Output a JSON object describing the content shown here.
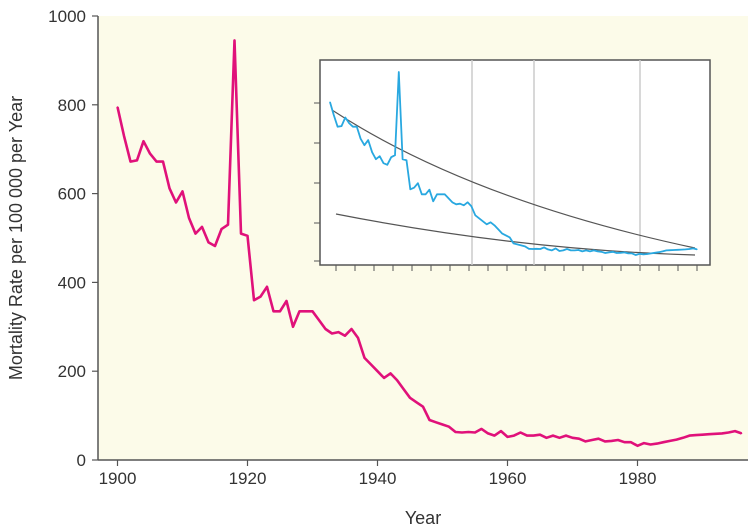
{
  "chart_data": {
    "type": "line",
    "title": "",
    "xlabel": "Year",
    "ylabel": "Mortality Rate per 100 000 per Year",
    "xlim": [
      1897,
      1997
    ],
    "ylim": [
      0,
      1000
    ],
    "x_ticks": [
      1900,
      1920,
      1940,
      1960,
      1980
    ],
    "y_ticks": [
      0,
      200,
      400,
      600,
      800,
      1000
    ],
    "grid": false,
    "legend": "none",
    "colors": {
      "series": "#e0117a",
      "background": "#fcfbe9",
      "axis": "#555555"
    },
    "series": [
      {
        "x": [
          1900,
          1901,
          1902,
          1903,
          1904,
          1905,
          1906,
          1907,
          1908,
          1909,
          1910,
          1911,
          1912,
          1913,
          1914,
          1915,
          1916,
          1917,
          1918,
          1919,
          1920,
          1921,
          1922,
          1923,
          1924,
          1925,
          1926,
          1927,
          1928,
          1929,
          1930,
          1931,
          1932,
          1933,
          1934,
          1935,
          1936,
          1937,
          1938,
          1939,
          1940,
          1941,
          1942,
          1943,
          1944,
          1945,
          1946,
          1947,
          1948,
          1949,
          1950,
          1951,
          1952,
          1953,
          1954,
          1955,
          1956,
          1957,
          1958,
          1959,
          1960,
          1961,
          1962,
          1963,
          1964,
          1965,
          1966,
          1967,
          1968,
          1969,
          1970,
          1971,
          1972,
          1973,
          1974,
          1975,
          1976,
          1977,
          1978,
          1979,
          1980,
          1981,
          1982,
          1983,
          1984,
          1985,
          1986,
          1987,
          1988,
          1989,
          1990,
          1991,
          1992,
          1993,
          1994,
          1995,
          1996
        ],
        "y": [
          795,
          730,
          672,
          675,
          718,
          690,
          672,
          672,
          612,
          580,
          605,
          545,
          510,
          525,
          490,
          482,
          520,
          530,
          945,
          510,
          505,
          360,
          368,
          390,
          335,
          335,
          358,
          300,
          335,
          335,
          335,
          315,
          295,
          285,
          288,
          280,
          295,
          275,
          230,
          215,
          200,
          185,
          195,
          180,
          160,
          140,
          130,
          120,
          90,
          85,
          80,
          75,
          63,
          62,
          63,
          62,
          70,
          60,
          55,
          65,
          52,
          55,
          62,
          55,
          55,
          57,
          50,
          55,
          50,
          55,
          50,
          48,
          42,
          45,
          48,
          42,
          43,
          45,
          40,
          40,
          32,
          38,
          35,
          37,
          40,
          43,
          46,
          50,
          55,
          56,
          57,
          58,
          59,
          60,
          62,
          65,
          60
        ]
      }
    ]
  },
  "inset": {
    "type": "line",
    "colors": {
      "series": "#29a8e0",
      "fit": "#555555",
      "frame": "#555555",
      "grid": "#cccccc"
    },
    "series": [
      {
        "x": [
          0,
          1,
          2,
          3,
          4,
          5,
          6,
          7,
          8,
          9,
          10,
          11,
          12,
          13,
          14,
          15,
          16,
          17,
          18,
          19,
          20,
          21,
          22,
          23,
          24,
          25,
          26,
          27,
          28,
          29,
          30,
          31,
          32,
          33,
          34,
          35,
          36,
          37,
          38,
          39,
          40,
          41,
          42,
          43,
          44,
          45,
          46,
          47,
          48,
          49,
          50,
          51,
          52,
          53,
          54,
          55,
          56,
          57,
          58,
          59,
          60,
          61,
          62,
          63,
          64,
          65,
          66,
          67,
          68,
          69,
          70,
          71,
          72,
          73,
          74,
          75,
          76,
          77,
          78,
          79,
          80,
          81,
          82,
          83,
          84,
          85,
          86,
          87,
          88,
          89,
          90,
          91,
          92,
          93,
          94,
          95,
          96
        ],
        "y": [
          795,
          730,
          672,
          675,
          718,
          690,
          672,
          672,
          612,
          580,
          605,
          545,
          510,
          525,
          490,
          482,
          520,
          530,
          945,
          510,
          505,
          360,
          368,
          390,
          335,
          335,
          358,
          300,
          335,
          335,
          335,
          315,
          295,
          285,
          288,
          280,
          295,
          275,
          230,
          215,
          200,
          185,
          195,
          180,
          160,
          140,
          130,
          120,
          90,
          85,
          80,
          75,
          63,
          62,
          63,
          62,
          70,
          60,
          55,
          65,
          52,
          55,
          62,
          55,
          55,
          57,
          50,
          55,
          50,
          55,
          50,
          48,
          42,
          45,
          48,
          42,
          43,
          45,
          40,
          40,
          32,
          38,
          35,
          37,
          40,
          43,
          46,
          50,
          55,
          56,
          57,
          58,
          59,
          60,
          62,
          65,
          60
        ]
      }
    ]
  }
}
